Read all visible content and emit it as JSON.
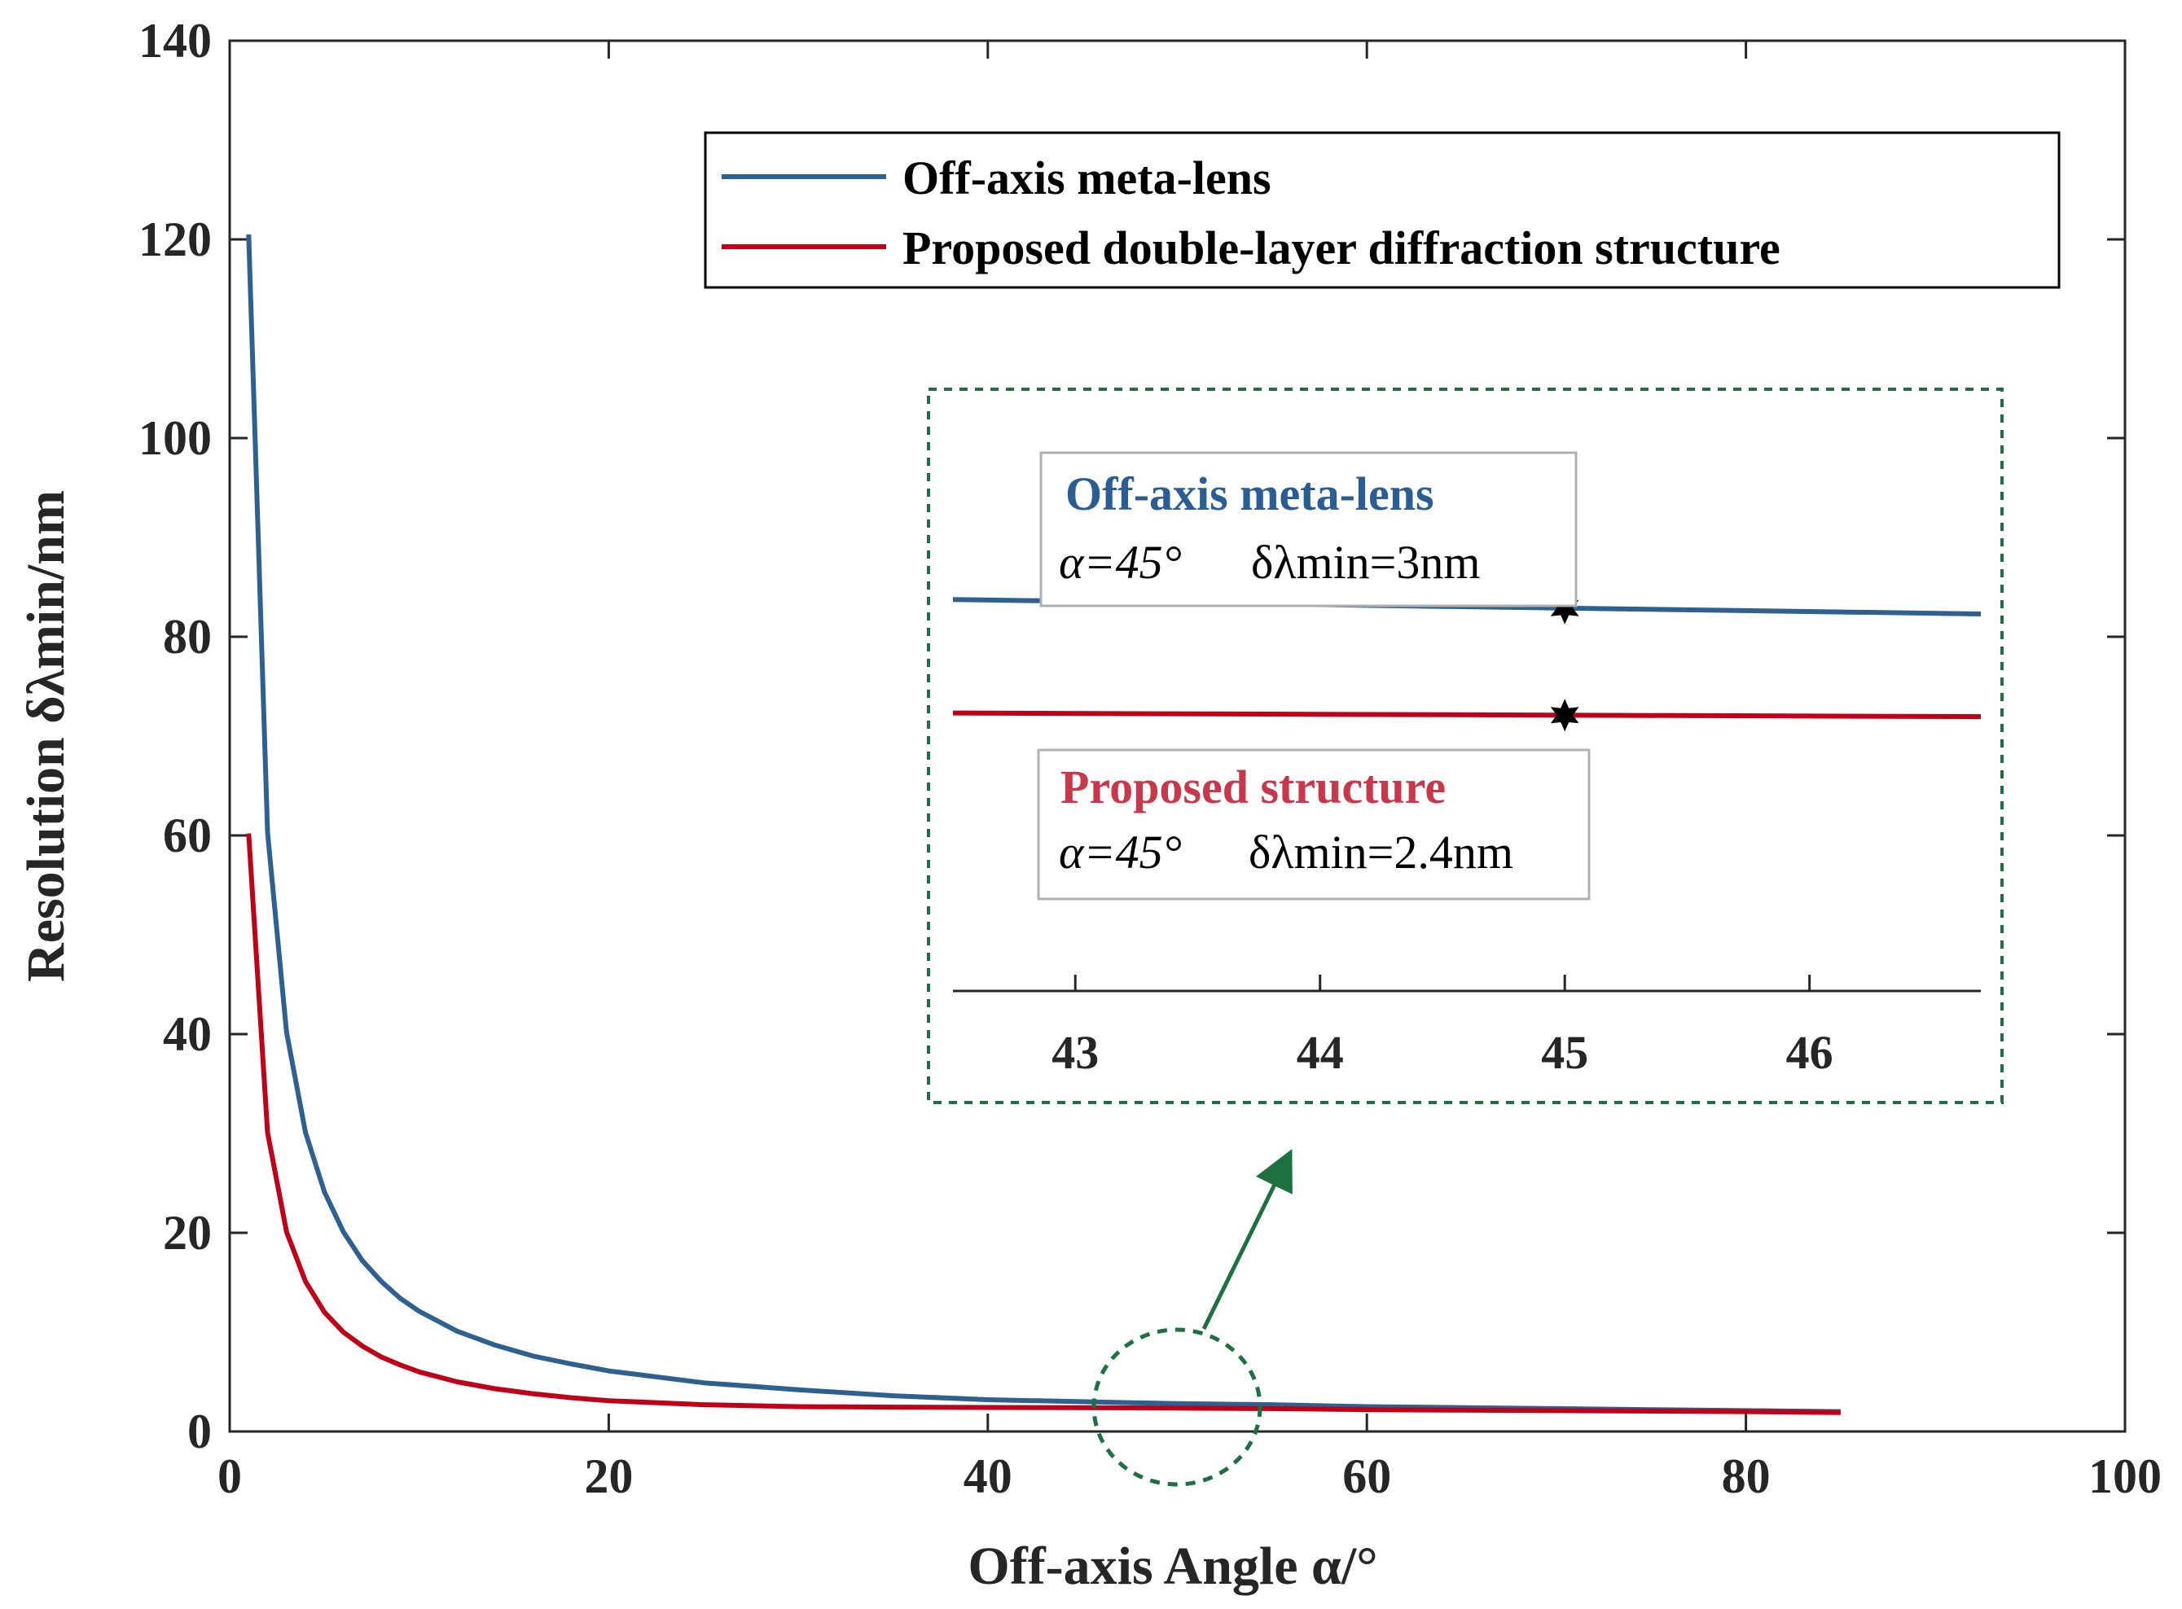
{
  "chart_data": {
    "type": "line",
    "title": "",
    "xlabel": "Off-axis Angle α/°",
    "ylabel": "Resolution δλmin/nm",
    "xlim": [
      0,
      100
    ],
    "ylim": [
      0,
      140
    ],
    "xticks": [
      0,
      20,
      40,
      60,
      80,
      100
    ],
    "yticks": [
      0,
      20,
      40,
      60,
      80,
      100,
      120,
      140
    ],
    "grid": false,
    "legend_position": "top-right",
    "series": [
      {
        "name": "Off-axis meta-lens",
        "color": "#2f6190",
        "x": [
          1,
          2,
          3,
          4,
          5,
          6,
          7,
          8,
          9,
          10,
          12,
          14,
          16,
          18,
          20,
          25,
          30,
          35,
          40,
          45,
          50,
          55,
          60,
          65,
          70,
          75,
          80,
          85
        ],
        "y": [
          120.5,
          60.3,
          40.2,
          30.1,
          24.1,
          20.1,
          17.2,
          15.1,
          13.4,
          12.1,
          10.1,
          8.7,
          7.6,
          6.8,
          6.1,
          4.9,
          4.2,
          3.6,
          3.2,
          3.0,
          2.8,
          2.7,
          2.5,
          2.4,
          2.3,
          2.2,
          2.1,
          2.0
        ]
      },
      {
        "name": "Proposed double-layer diffraction structure",
        "color": "#c00018",
        "x": [
          1,
          2,
          3,
          4,
          5,
          6,
          7,
          8,
          9,
          10,
          12,
          14,
          16,
          18,
          20,
          25,
          30,
          35,
          40,
          45,
          50,
          55,
          60,
          65,
          70,
          75,
          80,
          85
        ],
        "y": [
          60.2,
          30.1,
          20.1,
          15.1,
          12.0,
          10.0,
          8.6,
          7.5,
          6.7,
          6.0,
          5.0,
          4.3,
          3.8,
          3.4,
          3.1,
          2.7,
          2.5,
          2.45,
          2.42,
          2.4,
          2.35,
          2.3,
          2.2,
          2.15,
          2.1,
          2.05,
          2.0,
          1.9
        ]
      }
    ],
    "inset": {
      "xlim": [
        42.5,
        46.7
      ],
      "xticks": [
        43,
        44,
        45,
        46
      ],
      "meta_lens_line": {
        "x": [
          42.5,
          46.7
        ],
        "y": [
          3.04,
          2.96
        ]
      },
      "proposed_line": {
        "x": [
          42.5,
          46.7
        ],
        "y": [
          2.41,
          2.39
        ]
      },
      "markers": [
        {
          "series": "Off-axis meta-lens",
          "x": 45,
          "y": 3.0
        },
        {
          "series": "Proposed double-layer diffraction structure",
          "x": 45,
          "y": 2.4
        }
      ],
      "annotations": [
        {
          "title": "Off-axis meta-lens",
          "alpha_text": "α=45°",
          "resolution_text": "δλmin=3nm"
        },
        {
          "title": "Proposed structure",
          "alpha_text": "α=45°",
          "resolution_text": "δλmin=2.4nm"
        }
      ]
    }
  },
  "colors": {
    "meta_lens": "#2f6190",
    "proposed": "#c00018",
    "inset_frame": "#1e7040",
    "axis": "#262626",
    "ann_meta_title": "#2a5d94",
    "ann_prop_title": "#c8384a"
  }
}
